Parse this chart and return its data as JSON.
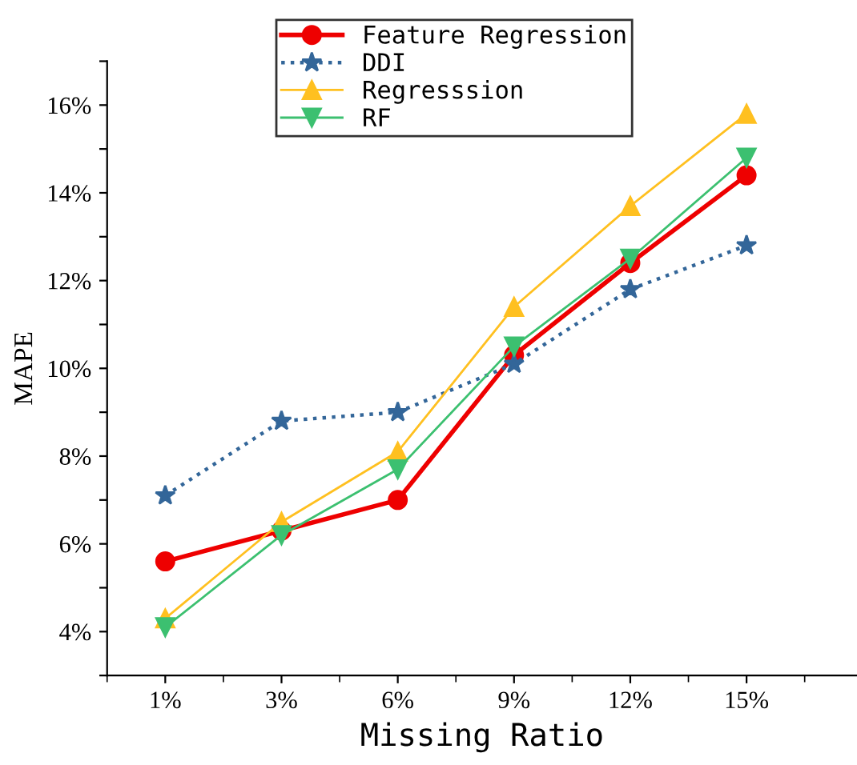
{
  "chart_data": {
    "type": "line",
    "xlabel": "Missing Ratio",
    "ylabel": "MAPE",
    "categories": [
      "1%",
      "3%",
      "6%",
      "9%",
      "12%",
      "15%"
    ],
    "series": [
      {
        "name": "Feature Regression",
        "color": "#ee0000",
        "marker": "circle",
        "line_style": "solid",
        "values": [
          5.6,
          6.3,
          7.0,
          10.3,
          12.4,
          14.4
        ]
      },
      {
        "name": "DDI",
        "color": "#336699",
        "marker": "star",
        "line_style": "dotted",
        "values": [
          7.1,
          8.8,
          9.0,
          10.1,
          11.8,
          12.8
        ]
      },
      {
        "name": "Regresssion",
        "color": "#ffc020",
        "marker": "triangle",
        "line_style": "solid",
        "values": [
          4.3,
          6.5,
          8.1,
          11.4,
          13.7,
          15.8
        ]
      },
      {
        "name": "RF",
        "color": "#3cc070",
        "marker": "triangle_down",
        "line_style": "solid",
        "values": [
          4.1,
          6.2,
          7.7,
          10.5,
          12.5,
          14.8
        ]
      }
    ],
    "ylim": [
      3,
      17
    ],
    "yticks": [
      {
        "value": 3,
        "label": null
      },
      {
        "value": 4,
        "label": "4%"
      },
      {
        "value": 5,
        "label": null
      },
      {
        "value": 6,
        "label": "6%"
      },
      {
        "value": 7,
        "label": null
      },
      {
        "value": 8,
        "label": "8%"
      },
      {
        "value": 9,
        "label": null
      },
      {
        "value": 10,
        "label": "10%"
      },
      {
        "value": 11,
        "label": null
      },
      {
        "value": 12,
        "label": "12%"
      },
      {
        "value": 13,
        "label": null
      },
      {
        "value": 14,
        "label": "14%"
      },
      {
        "value": 15,
        "label": null
      },
      {
        "value": 16,
        "label": "16%"
      },
      {
        "value": 17,
        "label": null
      }
    ],
    "grid": false,
    "legend": "top"
  }
}
